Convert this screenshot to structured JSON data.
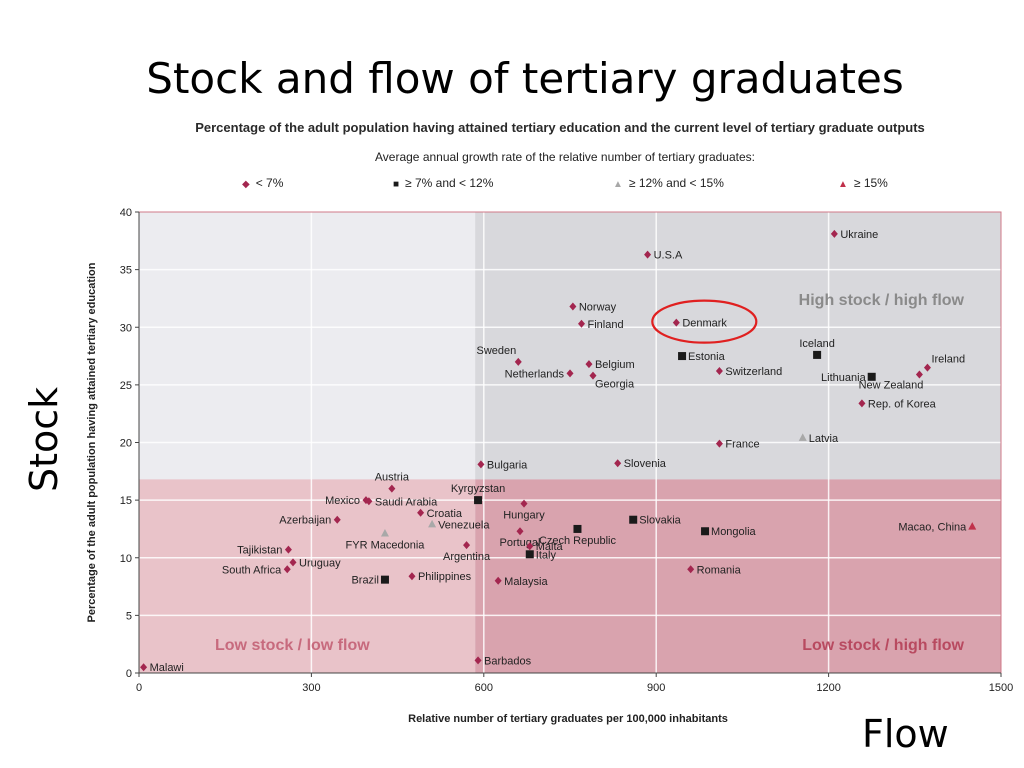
{
  "slide": {
    "title": "Stock and flow of tertiary graduates",
    "stock_label": "Stock",
    "flow_label": "Flow"
  },
  "chart_data": {
    "type": "scatter",
    "title": "Percentage of the adult population having attained tertiary education and the current level of tertiary graduate outputs",
    "legend_title": "Average annual growth rate of the relative number of tertiary graduates:",
    "xlabel": "Relative number of tertiary graduates per 100,000 inhabitants",
    "ylabel": "Percentage of the adult population having attained tertiary education",
    "xlim": [
      0,
      1500
    ],
    "ylim": [
      0,
      40
    ],
    "xticks": [
      0,
      300,
      600,
      900,
      1200,
      1500
    ],
    "yticks": [
      0,
      5,
      10,
      15,
      20,
      25,
      30,
      35,
      40
    ],
    "grid": true,
    "legend_position": "top",
    "quadrant_split": {
      "x": 585,
      "y": 16.8
    },
    "quadrant_labels": {
      "high_high": "High stock / high flow",
      "low_low": "Low stock / low flow",
      "low_high": "Low stock / high flow"
    },
    "colors": {
      "diamond": "#a3264f",
      "square": "#1a1a1a",
      "triangle_light": "#a8a8a8",
      "triangle_red": "#c0304a",
      "highlight_circle": "#e02020",
      "high_high_bg": "#d8d8dc",
      "low_low_bg": "#e9c3c9",
      "low_high_bg": "#d9a3ae",
      "plot_bg": "#ececf0",
      "frame": "#d07a88"
    },
    "highlight": "Denmark",
    "series": [
      {
        "name": "< 7%",
        "marker": "diamond",
        "points": [
          {
            "label": "Ukraine",
            "x": 1210,
            "y": 38.1,
            "anchor": "right"
          },
          {
            "label": "U.S.A",
            "x": 885,
            "y": 36.3,
            "anchor": "right"
          },
          {
            "label": "Norway",
            "x": 755,
            "y": 31.8,
            "anchor": "right"
          },
          {
            "label": "Finland",
            "x": 770,
            "y": 30.3,
            "anchor": "right"
          },
          {
            "label": "Denmark",
            "x": 935,
            "y": 30.4,
            "anchor": "right"
          },
          {
            "label": "Sweden",
            "x": 660,
            "y": 27.0,
            "anchor": "above-left"
          },
          {
            "label": "Belgium",
            "x": 783,
            "y": 26.8,
            "anchor": "right"
          },
          {
            "label": "Netherlands",
            "x": 750,
            "y": 26.0,
            "anchor": "left"
          },
          {
            "label": "Georgia",
            "x": 790,
            "y": 25.8,
            "anchor": "below-right"
          },
          {
            "label": "Switzerland",
            "x": 1010,
            "y": 26.2,
            "anchor": "right"
          },
          {
            "label": "Ireland",
            "x": 1372,
            "y": 26.5,
            "anchor": "above-right"
          },
          {
            "label": "New Zealand",
            "x": 1358,
            "y": 25.9,
            "anchor": "below-left"
          },
          {
            "label": "Rep. of Korea",
            "x": 1258,
            "y": 23.4,
            "anchor": "right"
          },
          {
            "label": "France",
            "x": 1010,
            "y": 19.9,
            "anchor": "right"
          },
          {
            "label": "Slovenia",
            "x": 833,
            "y": 18.2,
            "anchor": "right"
          },
          {
            "label": "Bulgaria",
            "x": 595,
            "y": 18.1,
            "anchor": "right"
          },
          {
            "label": "Austria",
            "x": 440,
            "y": 16.0,
            "anchor": "above"
          },
          {
            "label": "Mexico",
            "x": 395,
            "y": 15.0,
            "anchor": "left"
          },
          {
            "label": "Saudi Arabia",
            "x": 400,
            "y": 14.9,
            "anchor": "right"
          },
          {
            "label": "Hungary",
            "x": 670,
            "y": 14.7,
            "anchor": "below"
          },
          {
            "label": "Azerbaijan",
            "x": 345,
            "y": 13.3,
            "anchor": "left"
          },
          {
            "label": "Croatia",
            "x": 490,
            "y": 13.9,
            "anchor": "right"
          },
          {
            "label": "Portugal",
            "x": 663,
            "y": 12.3,
            "anchor": "below"
          },
          {
            "label": "Argentina",
            "x": 570,
            "y": 11.1,
            "anchor": "below"
          },
          {
            "label": "Malta",
            "x": 680,
            "y": 11.0,
            "anchor": "right"
          },
          {
            "label": "Tajikistan",
            "x": 260,
            "y": 10.7,
            "anchor": "left"
          },
          {
            "label": "Uruguay",
            "x": 268,
            "y": 9.6,
            "anchor": "right"
          },
          {
            "label": "South Africa",
            "x": 258,
            "y": 9.0,
            "anchor": "left"
          },
          {
            "label": "Romania",
            "x": 960,
            "y": 9.0,
            "anchor": "right"
          },
          {
            "label": "Philippines",
            "x": 475,
            "y": 8.4,
            "anchor": "right"
          },
          {
            "label": "Malaysia",
            "x": 625,
            "y": 8.0,
            "anchor": "right"
          },
          {
            "label": "Barbados",
            "x": 590,
            "y": 1.1,
            "anchor": "right"
          },
          {
            "label": "Malawi",
            "x": 8,
            "y": 0.5,
            "anchor": "right"
          }
        ]
      },
      {
        "name": "≥ 7% and < 12%",
        "marker": "square",
        "points": [
          {
            "label": "Estonia",
            "x": 945,
            "y": 27.5,
            "anchor": "right"
          },
          {
            "label": "Iceland",
            "x": 1180,
            "y": 27.6,
            "anchor": "above"
          },
          {
            "label": "Lithuania",
            "x": 1275,
            "y": 25.7,
            "anchor": "left"
          },
          {
            "label": "Kyrgyzstan",
            "x": 590,
            "y": 15.0,
            "anchor": "above"
          },
          {
            "label": "Slovakia",
            "x": 860,
            "y": 13.3,
            "anchor": "right"
          },
          {
            "label": "Czech Republic",
            "x": 763,
            "y": 12.5,
            "anchor": "below"
          },
          {
            "label": "Mongolia",
            "x": 985,
            "y": 12.3,
            "anchor": "right"
          },
          {
            "label": "Italy",
            "x": 680,
            "y": 10.3,
            "anchor": "right"
          },
          {
            "label": "Brazil",
            "x": 428,
            "y": 8.1,
            "anchor": "left"
          }
        ]
      },
      {
        "name": "≥ 12% and < 15%",
        "marker": "triangle-light",
        "points": [
          {
            "label": "Latvia",
            "x": 1155,
            "y": 20.4,
            "anchor": "right"
          },
          {
            "label": "Venezuela",
            "x": 510,
            "y": 12.9,
            "anchor": "right"
          },
          {
            "label": "FYR Macedonia",
            "x": 428,
            "y": 12.1,
            "anchor": "below"
          }
        ]
      },
      {
        "name": "≥ 15%",
        "marker": "triangle-red",
        "points": [
          {
            "label": "Macao, China",
            "x": 1450,
            "y": 12.7,
            "anchor": "left"
          }
        ]
      }
    ]
  }
}
